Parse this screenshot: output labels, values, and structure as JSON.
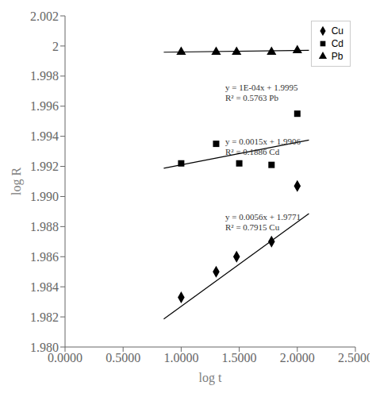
{
  "chart_data": {
    "type": "scatter",
    "xlabel": "log t",
    "ylabel": "log R",
    "xlim": [
      0.0,
      2.5
    ],
    "ylim": [
      1.98,
      2.002
    ],
    "xticks": [
      {
        "value": 0.0,
        "label": "0.0000"
      },
      {
        "value": 0.5,
        "label": "0.5000"
      },
      {
        "value": 1.0,
        "label": "1.0000"
      },
      {
        "value": 1.5,
        "label": "1.5000"
      },
      {
        "value": 2.0,
        "label": "2.0000"
      },
      {
        "value": 2.5,
        "label": "2.5000"
      }
    ],
    "yticks": [
      {
        "value": 1.98,
        "label": "1.980"
      },
      1.982,
      1.984,
      1.986,
      1.988,
      {
        "value": 1.99,
        "label": "1.990"
      },
      1.992,
      1.994,
      1.996,
      1.998,
      2,
      2.002
    ],
    "grid": false,
    "legend": "upper right",
    "series": [
      {
        "name": "Cu",
        "type": "scatter",
        "marker": "diamond",
        "color": "#000000",
        "x": [
          1.0,
          1.301,
          1.477,
          1.778,
          2.0
        ],
        "values": [
          1.9833,
          1.985,
          1.986,
          1.987,
          1.9907
        ],
        "trendline": {
          "x": [
            0.85,
            2.1
          ],
          "values": [
            1.98186,
            1.98886
          ],
          "color": "#000000",
          "line_style": "solid"
        }
      },
      {
        "name": "Cd",
        "type": "scatter",
        "marker": "square",
        "color": "#000000",
        "x": [
          1.0,
          1.301,
          1.5,
          1.778,
          2.0
        ],
        "values": [
          1.9922,
          1.9935,
          1.9922,
          1.9921,
          1.9955
        ],
        "trendline": {
          "x": [
            0.85,
            2.1
          ],
          "values": [
            1.991875,
            1.99375
          ],
          "color": "#000000",
          "line_style": "solid"
        }
      },
      {
        "name": "Pb",
        "type": "scatter",
        "marker": "triangle",
        "color": "#000000",
        "x": [
          1.0,
          1.301,
          1.477,
          1.778,
          2.0
        ],
        "values": [
          1.9996,
          1.9996,
          1.9996,
          1.9996,
          1.9997
        ],
        "trendline": {
          "x": [
            0.85,
            2.1
          ],
          "values": [
            1.999585,
            1.99971
          ],
          "color": "#000000",
          "line_style": "solid"
        }
      }
    ],
    "annotations": [
      {
        "text": "y = 1E-04x + 1.9995\nR² = 0.5763 Pb",
        "x": 1.38,
        "y": 1.9962
      },
      {
        "text": "y = 0.0015x + 1.9906\nR² = 0.1886 Cd",
        "x": 1.38,
        "y": 1.9926
      },
      {
        "text": "y = 0.0056x + 1.9771\nR² = 0.7915 Cu",
        "x": 1.38,
        "y": 1.9876
      }
    ]
  }
}
